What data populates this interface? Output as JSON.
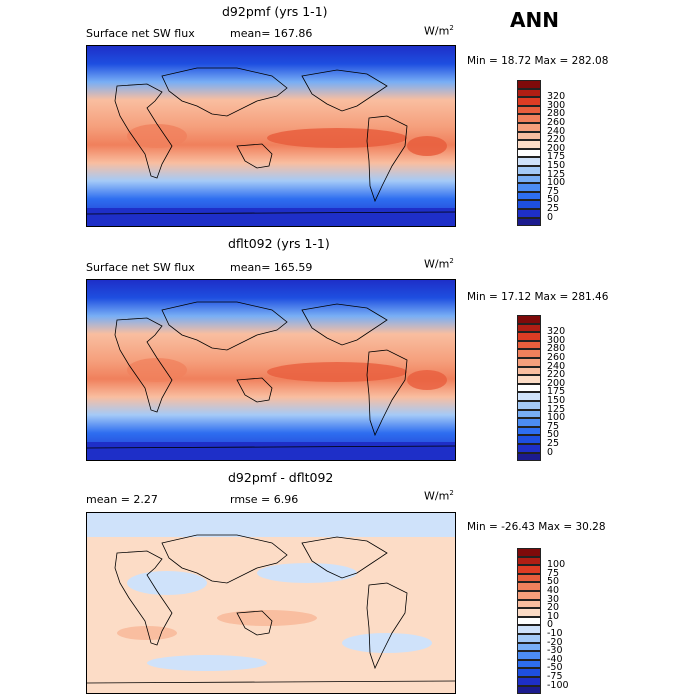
{
  "season": "ANN",
  "panels": [
    {
      "title": "d92pmf (yrs 1-1)",
      "subtitle_left": "Surface net SW flux",
      "stat1": "mean=  167.86",
      "stat2": "",
      "unit_base": "W/m",
      "unit_exp": "2",
      "minmax": "Min =  18.72 Max = 282.08",
      "palette": [
        "#1c1b8e",
        "#1e2fc8",
        "#1e4fe0",
        "#2e6ef0",
        "#4c8cf2",
        "#78aef5",
        "#a4caf7",
        "#cfe2fa",
        "#ffffff",
        "#fcdcc6",
        "#f9bea0",
        "#f59f7c",
        "#f0805c",
        "#e85e3d",
        "#de3c24",
        "#b01e14",
        "#7e0a0a"
      ],
      "levels": [
        "0",
        "25",
        "50",
        "75",
        "100",
        "125",
        "150",
        "175",
        "200",
        "220",
        "240",
        "260",
        "280",
        "300",
        "320"
      ]
    },
    {
      "title": "dflt092 (yrs 1-1)",
      "subtitle_left": "Surface net SW flux",
      "stat1": "mean=  165.59",
      "stat2": "",
      "unit_base": "W/m",
      "unit_exp": "2",
      "minmax": "Min =  17.12 Max = 281.46",
      "palette": [
        "#1c1b8e",
        "#1e2fc8",
        "#1e4fe0",
        "#2e6ef0",
        "#4c8cf2",
        "#78aef5",
        "#a4caf7",
        "#cfe2fa",
        "#ffffff",
        "#fcdcc6",
        "#f9bea0",
        "#f59f7c",
        "#f0805c",
        "#e85e3d",
        "#de3c24",
        "#b01e14",
        "#7e0a0a"
      ],
      "levels": [
        "0",
        "25",
        "50",
        "75",
        "100",
        "125",
        "150",
        "175",
        "200",
        "220",
        "240",
        "260",
        "280",
        "300",
        "320"
      ]
    },
    {
      "title": "d92pmf - dflt092",
      "subtitle_left": "mean =    2.27",
      "stat1": "",
      "stat2": "rmse =    6.96",
      "unit_base": "W/m",
      "unit_exp": "2",
      "minmax": "Min = -26.43 Max =  30.28",
      "palette": [
        "#1c1b8e",
        "#1e2fc8",
        "#1e4fe0",
        "#2e6ef0",
        "#4c8cf2",
        "#78aef5",
        "#a4caf7",
        "#cfe2fa",
        "#ffffff",
        "#fcdcc6",
        "#f9bea0",
        "#f59f7c",
        "#f0805c",
        "#e85e3d",
        "#de3c24",
        "#b01e14",
        "#7e0a0a"
      ],
      "levels": [
        "-100",
        "-75",
        "-50",
        "-40",
        "-30",
        "-20",
        "-10",
        "0",
        "10",
        "20",
        "30",
        "40",
        "50",
        "75",
        "100"
      ]
    }
  ]
}
